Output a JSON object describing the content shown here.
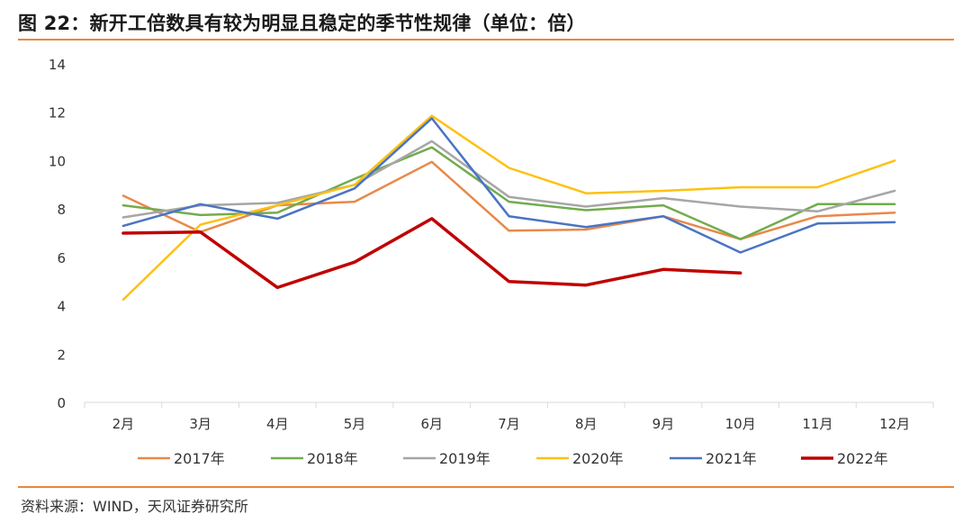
{
  "title": "图 22：新开工倍数具有较为明显且稳定的季节性规律（单位：倍）",
  "source": "资料来源：WIND，天风证券研究所",
  "colors": {
    "rule": "#e8883a"
  },
  "chart_data": {
    "type": "line",
    "categories": [
      "2月",
      "3月",
      "4月",
      "5月",
      "6月",
      "7月",
      "8月",
      "9月",
      "10月",
      "11月",
      "12月"
    ],
    "y_ticks": [
      "0",
      "2",
      "4",
      "6",
      "8",
      "10",
      "12",
      "14"
    ],
    "ylim": [
      0,
      14
    ],
    "grid": false,
    "legend_position": "bottom",
    "series": [
      {
        "name": "2017年",
        "color": "#e8894a",
        "width": 2.5,
        "values": [
          8.55,
          7.05,
          8.15,
          8.3,
          9.95,
          7.1,
          7.15,
          7.7,
          6.75,
          7.7,
          7.85
        ]
      },
      {
        "name": "2018年",
        "color": "#72ac4d",
        "width": 2.5,
        "values": [
          8.15,
          7.75,
          7.85,
          9.25,
          10.55,
          8.3,
          7.95,
          8.15,
          6.75,
          8.2,
          8.2
        ]
      },
      {
        "name": "2019年",
        "color": "#a6a6a6",
        "width": 2.5,
        "values": [
          7.65,
          8.15,
          8.25,
          9.0,
          10.8,
          8.5,
          8.1,
          8.45,
          8.1,
          7.9,
          8.75
        ]
      },
      {
        "name": "2020年",
        "color": "#fdc111",
        "width": 2.5,
        "values": [
          4.25,
          7.35,
          8.15,
          9.0,
          11.85,
          9.7,
          8.65,
          8.75,
          8.9,
          8.9,
          10.0
        ]
      },
      {
        "name": "2021年",
        "color": "#4a74c3",
        "width": 2.5,
        "values": [
          7.3,
          8.2,
          7.6,
          8.85,
          11.75,
          7.7,
          7.25,
          7.7,
          6.2,
          7.4,
          7.45
        ]
      },
      {
        "name": "2022年",
        "color": "#c00000",
        "width": 3.5,
        "values": [
          7.0,
          7.05,
          4.75,
          5.8,
          7.6,
          5.0,
          4.85,
          5.5,
          5.35,
          null,
          null
        ]
      }
    ]
  }
}
